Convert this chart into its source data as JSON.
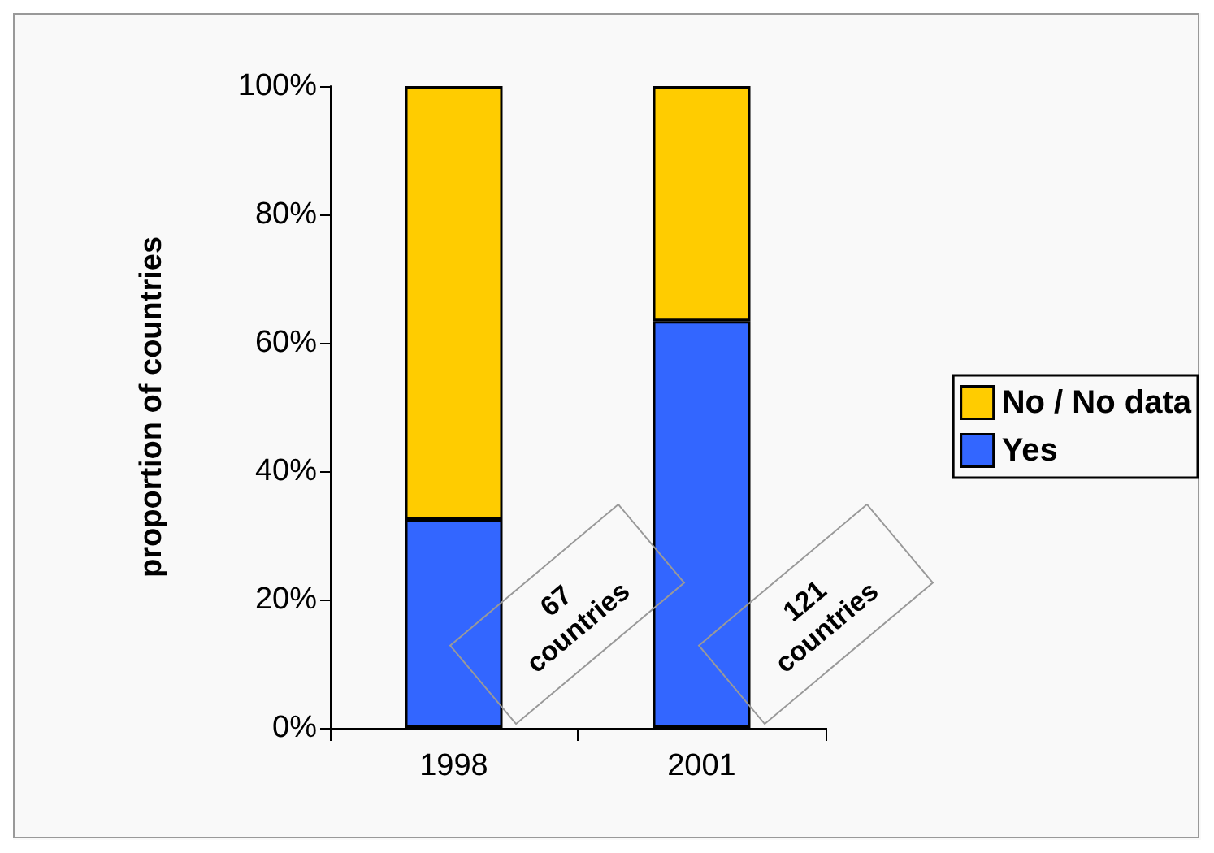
{
  "chart_data": {
    "type": "bar",
    "stacked": true,
    "categories": [
      "1998",
      "2001"
    ],
    "ylabel": "proportion of countries",
    "ylim": [
      0,
      100
    ],
    "yticks": [
      {
        "value": 0,
        "label": "0%"
      },
      {
        "value": 20,
        "label": "20%"
      },
      {
        "value": 40,
        "label": "40%"
      },
      {
        "value": 60,
        "label": "60%"
      },
      {
        "value": 80,
        "label": "80%"
      },
      {
        "value": 100,
        "label": "100%"
      }
    ],
    "grid": false,
    "legend": "right",
    "series": [
      {
        "name": "Yes",
        "color": "#3366ff",
        "values": [
          32.4,
          63.4
        ]
      },
      {
        "name": "No / No data",
        "color": "#ffcc00",
        "values": [
          67.6,
          36.6
        ]
      }
    ],
    "annotations": [
      "67 countries",
      "121 countries"
    ]
  }
}
